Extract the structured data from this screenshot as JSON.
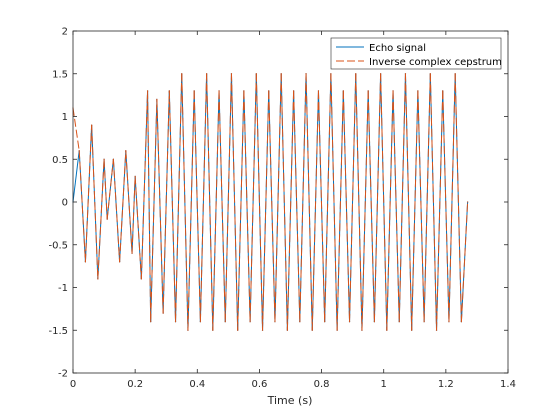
{
  "chart_data": {
    "type": "line",
    "xlabel": "Time (s)",
    "ylabel": "",
    "title": "",
    "xlim": [
      0,
      1.4
    ],
    "ylim": [
      -2,
      2
    ],
    "xticks": [
      0,
      0.2,
      0.4,
      0.6,
      0.8,
      1,
      1.2,
      1.4
    ],
    "xtick_labels": [
      "0",
      "0.2",
      "0.4",
      "0.6",
      "0.8",
      "1",
      "1.2",
      "1.4"
    ],
    "yticks": [
      -2,
      -1.5,
      -1,
      -0.5,
      0,
      0.5,
      1,
      1.5,
      2
    ],
    "ytick_labels": [
      "-2",
      "-1.5",
      "-1",
      "-0.5",
      "0",
      "0.5",
      "1",
      "1.5",
      "2"
    ],
    "grid": false,
    "legend_position": "top-right",
    "series": [
      {
        "name": "Echo signal",
        "style": "solid",
        "color": "#0072BD",
        "x": [
          0,
          0.02,
          0.04,
          0.06,
          0.08,
          0.1,
          0.11,
          0.13,
          0.15,
          0.17,
          0.19,
          0.2,
          0.22,
          0.24,
          0.25,
          0.27,
          0.29,
          0.31,
          0.33,
          0.35,
          0.37,
          0.39,
          0.41,
          0.43,
          0.45,
          0.47,
          0.49,
          0.51,
          0.53,
          0.55,
          0.57,
          0.59,
          0.61,
          0.63,
          0.65,
          0.67,
          0.69,
          0.71,
          0.73,
          0.75,
          0.77,
          0.79,
          0.81,
          0.83,
          0.85,
          0.87,
          0.89,
          0.91,
          0.93,
          0.95,
          0.97,
          0.99,
          1.01,
          1.03,
          1.05,
          1.07,
          1.09,
          1.11,
          1.13,
          1.15,
          1.17,
          1.19,
          1.21,
          1.23,
          1.25,
          1.27
        ],
        "y": [
          0,
          0.6,
          -0.7,
          0.9,
          -0.9,
          0.5,
          -0.2,
          0.5,
          -0.7,
          0.6,
          -0.6,
          0.3,
          -0.9,
          1.3,
          -1.4,
          1.2,
          -1.3,
          1.3,
          -1.4,
          1.5,
          -1.5,
          1.3,
          -1.4,
          1.5,
          -1.5,
          1.3,
          -1.4,
          1.5,
          -1.5,
          1.3,
          -1.4,
          1.5,
          -1.5,
          1.3,
          -1.4,
          1.5,
          -1.5,
          1.3,
          -1.4,
          1.5,
          -1.5,
          1.3,
          -1.4,
          1.5,
          -1.5,
          1.3,
          -1.4,
          1.5,
          -1.5,
          1.3,
          -1.4,
          1.5,
          -1.5,
          1.3,
          -1.4,
          1.5,
          -1.5,
          1.3,
          -1.4,
          1.5,
          -1.5,
          1.3,
          -1.4,
          1.5,
          -1.4,
          0
        ]
      },
      {
        "name": "Inverse complex cepstrum",
        "style": "dashed",
        "color": "#D95319",
        "x": [
          0,
          0.02,
          0.04,
          0.06,
          0.08,
          0.1,
          0.11,
          0.13,
          0.15,
          0.17,
          0.19,
          0.2,
          0.22,
          0.24,
          0.25,
          0.27,
          0.29,
          0.31,
          0.33,
          0.35,
          0.37,
          0.39,
          0.41,
          0.43,
          0.45,
          0.47,
          0.49,
          0.51,
          0.53,
          0.55,
          0.57,
          0.59,
          0.61,
          0.63,
          0.65,
          0.67,
          0.69,
          0.71,
          0.73,
          0.75,
          0.77,
          0.79,
          0.81,
          0.83,
          0.85,
          0.87,
          0.89,
          0.91,
          0.93,
          0.95,
          0.97,
          0.99,
          1.01,
          1.03,
          1.05,
          1.07,
          1.09,
          1.11,
          1.13,
          1.15,
          1.17,
          1.19,
          1.21,
          1.23,
          1.25,
          1.27
        ],
        "y": [
          1.1,
          0.6,
          -0.7,
          0.9,
          -0.9,
          0.5,
          -0.2,
          0.5,
          -0.7,
          0.6,
          -0.6,
          0.3,
          -0.9,
          1.3,
          -1.4,
          1.2,
          -1.3,
          1.3,
          -1.4,
          1.5,
          -1.5,
          1.3,
          -1.4,
          1.5,
          -1.5,
          1.3,
          -1.4,
          1.5,
          -1.5,
          1.3,
          -1.4,
          1.5,
          -1.5,
          1.3,
          -1.4,
          1.5,
          -1.5,
          1.3,
          -1.4,
          1.5,
          -1.5,
          1.3,
          -1.4,
          1.5,
          -1.5,
          1.3,
          -1.4,
          1.5,
          -1.5,
          1.3,
          -1.4,
          1.5,
          -1.5,
          1.3,
          -1.4,
          1.5,
          -1.5,
          1.3,
          -1.4,
          1.5,
          -1.5,
          1.3,
          -1.4,
          1.5,
          -1.4,
          0
        ]
      }
    ]
  }
}
